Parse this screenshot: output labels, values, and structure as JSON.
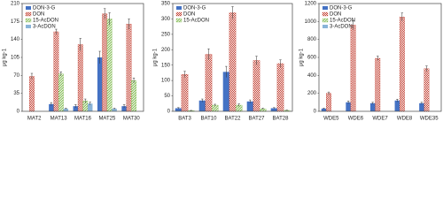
{
  "chart_data": [
    {
      "type": "bar",
      "ylabel": "μg kg-1",
      "legend": "upper left",
      "categories": [
        "MAT2",
        "MAT13",
        "MAT16",
        "MAT25",
        "MAT30"
      ],
      "ylim": [
        0,
        210
      ],
      "yticks": [
        0,
        35,
        70,
        105,
        140,
        175,
        210
      ],
      "series": [
        {
          "name": "DON-3-G",
          "color": "#4472c4",
          "fill": "solid",
          "values": [
            0,
            14,
            10,
            105,
            10
          ],
          "errors": [
            0,
            3,
            3,
            12,
            3
          ]
        },
        {
          "name": "DON",
          "color": "#c0392b",
          "fill": "checkered",
          "values": [
            68,
            155,
            130,
            190,
            170
          ],
          "errors": [
            6,
            5,
            12,
            10,
            10
          ]
        },
        {
          "name": "15-AcDON",
          "color": "#7ab648",
          "fill": "striped",
          "values": [
            0,
            73,
            20,
            180,
            60
          ],
          "errors": [
            0,
            4,
            4,
            12,
            5
          ]
        },
        {
          "name": "3-AcDON",
          "color": "#8ab4d8",
          "fill": "solid",
          "values": [
            0,
            5,
            15,
            5,
            0
          ],
          "errors": [
            0,
            1,
            3,
            1,
            0
          ]
        }
      ]
    },
    {
      "type": "bar",
      "ylabel": "μg kg-1",
      "legend": "upper left",
      "categories": [
        "BAT3",
        "BAT10",
        "BAT22",
        "BAT27",
        "BAT28"
      ],
      "ylim": [
        0,
        350
      ],
      "yticks": [
        0,
        50,
        100,
        150,
        200,
        250,
        300,
        350
      ],
      "series": [
        {
          "name": "DON-3-G",
          "color": "#4472c4",
          "fill": "solid",
          "values": [
            10,
            35,
            128,
            32,
            10
          ],
          "errors": [
            2,
            5,
            18,
            5,
            2
          ]
        },
        {
          "name": "DON",
          "color": "#c0392b",
          "fill": "checkered",
          "values": [
            120,
            185,
            320,
            165,
            155
          ],
          "errors": [
            10,
            18,
            20,
            14,
            12
          ]
        },
        {
          "name": "15-AcDON",
          "color": "#7ab648",
          "fill": "striped",
          "values": [
            2,
            20,
            20,
            8,
            3
          ],
          "errors": [
            1,
            3,
            4,
            2,
            1
          ]
        }
      ]
    },
    {
      "type": "bar",
      "ylabel": "μg kg-1",
      "legend": "upper left",
      "categories": [
        "WDE5",
        "WDE6",
        "WDE7",
        "WDE8",
        "WDE35"
      ],
      "ylim": [
        0,
        1200
      ],
      "yticks": [
        0,
        200,
        400,
        600,
        800,
        1000,
        1200
      ],
      "series": [
        {
          "name": "DON-3-G",
          "color": "#4472c4",
          "fill": "solid",
          "values": [
            30,
            100,
            90,
            120,
            90
          ],
          "errors": [
            5,
            15,
            10,
            15,
            10
          ]
        },
        {
          "name": "DON",
          "color": "#c0392b",
          "fill": "checkered",
          "values": [
            200,
            960,
            590,
            1050,
            475
          ],
          "errors": [
            15,
            50,
            25,
            45,
            30
          ]
        },
        {
          "name": "15-AcDON",
          "color": "#7ab648",
          "fill": "striped",
          "values": [
            0,
            0,
            0,
            0,
            0
          ],
          "errors": [
            0,
            0,
            0,
            0,
            0
          ]
        },
        {
          "name": "3-AcDON",
          "color": "#8ab4d8",
          "fill": "solid",
          "values": [
            0,
            0,
            0,
            0,
            0
          ],
          "errors": [
            0,
            0,
            0,
            0,
            0
          ]
        }
      ]
    }
  ]
}
